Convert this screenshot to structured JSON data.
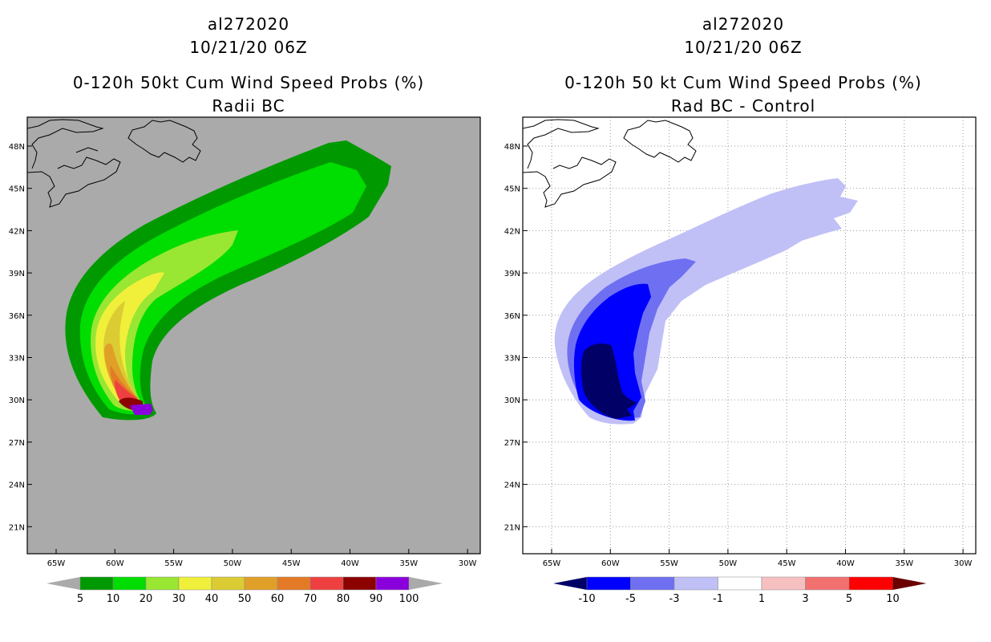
{
  "panels": [
    {
      "storm_id": "al272020",
      "datetime": "10/21/20 06Z",
      "title": "0-120h 50kt Cum Wind Speed Probs (%)",
      "subtitle": "Radii BC",
      "background": "#aaaaaa",
      "colorbar": {
        "labels": [
          "5",
          "10",
          "20",
          "30",
          "40",
          "50",
          "60",
          "70",
          "80",
          "90",
          "100"
        ],
        "colors": [
          "#009900",
          "#00dd00",
          "#99e633",
          "#f0f03a",
          "#dccc33",
          "#e0a028",
          "#e47a26",
          "#ee4040",
          "#8c0000",
          "#8a00dd"
        ],
        "end_colors": [
          "#aaaaaa",
          "#aaaaaa"
        ]
      }
    },
    {
      "storm_id": "al272020",
      "datetime": "10/21/20 06Z",
      "title": "0-120h 50 kt Cum Wind Speed Probs (%)",
      "subtitle": "Rad BC - Control",
      "background": "#ffffff",
      "colorbar": {
        "labels": [
          "-10",
          "-5",
          "-3",
          "-1",
          "1",
          "3",
          "5",
          "10"
        ],
        "colors": [
          "#0000ff",
          "#6f6ff2",
          "#c0c0f7",
          "#ffffff",
          "#f7c0c0",
          "#f27070",
          "#ff0000"
        ],
        "end_colors": [
          "#000066",
          "#6a0000"
        ]
      }
    }
  ],
  "axes": {
    "lon_ticks": [
      "65W",
      "60W",
      "55W",
      "50W",
      "45W",
      "40W",
      "35W",
      "30W"
    ],
    "lat_ticks": [
      "48N",
      "45N",
      "42N",
      "39N",
      "36N",
      "33N",
      "30N",
      "27N",
      "24N",
      "21N"
    ]
  }
}
